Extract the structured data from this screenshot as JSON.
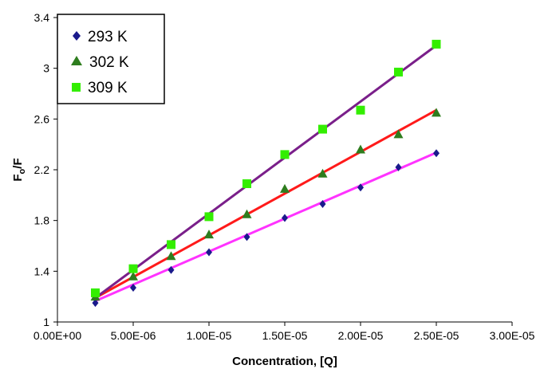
{
  "chart_data": {
    "type": "scatter",
    "title": "",
    "xlabel": "Concentration, [Q]",
    "ylabel_main": "F",
    "ylabel_sub": "o",
    "ylabel_tail": "/F",
    "xlim": [
      0,
      3e-05
    ],
    "ylim": [
      1,
      3.4
    ],
    "x_ticks": [
      0,
      5e-06,
      1e-05,
      1.5e-05,
      2e-05,
      2.5e-05,
      3e-05
    ],
    "x_tick_labels": [
      "0.00E+00",
      "5.00E-06",
      "1.00E-05",
      "1.50E-05",
      "2.00E-05",
      "2.50E-05",
      "3.00E-05"
    ],
    "y_ticks": [
      1,
      1.4,
      1.8,
      2.2,
      2.6,
      3,
      3.4
    ],
    "y_tick_labels": [
      "1",
      "1.4",
      "1.8",
      "2.2",
      "2.6",
      "3",
      "3.4"
    ],
    "grid": false,
    "legend_position": "top-left",
    "x": [
      2.5e-06,
      5e-06,
      7.5e-06,
      1e-05,
      1.25e-05,
      1.5e-05,
      1.75e-05,
      2e-05,
      2.25e-05,
      2.5e-05
    ],
    "series": [
      {
        "name": "293 K",
        "marker": "diamond",
        "marker_color": "#1a1a8c",
        "line_color": "#ff33ff",
        "values": [
          1.15,
          1.27,
          1.41,
          1.55,
          1.67,
          1.82,
          1.93,
          2.06,
          2.22,
          2.33
        ],
        "fit": [
          1.165,
          2.335
        ]
      },
      {
        "name": "302 K",
        "marker": "triangle",
        "marker_color": "#2e7d1e",
        "line_color": "#ff1a1a",
        "values": [
          1.2,
          1.36,
          1.52,
          1.69,
          1.85,
          2.05,
          2.17,
          2.36,
          2.48,
          2.65
        ],
        "fit": [
          1.19,
          2.67
        ]
      },
      {
        "name": "309 K",
        "marker": "square",
        "marker_color": "#33ee00",
        "line_color": "#7a1f8a",
        "values": [
          1.23,
          1.42,
          1.61,
          1.83,
          2.09,
          2.32,
          2.52,
          2.67,
          2.97,
          3.19
        ],
        "fit": [
          1.19,
          3.18
        ]
      }
    ]
  }
}
